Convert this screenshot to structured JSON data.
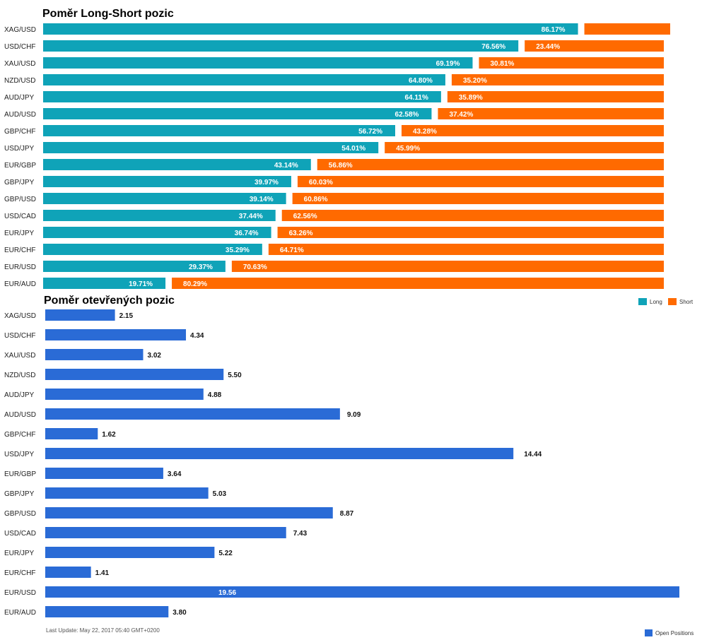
{
  "colors": {
    "long": "#0fa3b8",
    "short": "#ff6a00",
    "open": "#2a6bd6"
  },
  "chart_data": [
    {
      "type": "bar",
      "orientation": "horizontal",
      "stacked": true,
      "title": "Poměr Long-Short pozic",
      "categories": [
        "XAG/USD",
        "USD/CHF",
        "XAU/USD",
        "NZD/USD",
        "AUD/JPY",
        "AUD/USD",
        "GBP/CHF",
        "USD/JPY",
        "EUR/GBP",
        "GBP/JPY",
        "GBP/USD",
        "USD/CAD",
        "EUR/JPY",
        "EUR/CHF",
        "EUR/USD",
        "EUR/AUD"
      ],
      "series": [
        {
          "name": "Long",
          "values": [
            86.17,
            76.56,
            69.19,
            64.8,
            64.11,
            62.58,
            56.72,
            54.01,
            43.14,
            39.97,
            39.14,
            37.44,
            36.74,
            35.29,
            29.37,
            19.71
          ],
          "labels": [
            "86.17%",
            "76.56%",
            "69.19%",
            "64.80%",
            "64.11%",
            "62.58%",
            "56.72%",
            "54.01%",
            "43.14%",
            "39.97%",
            "39.14%",
            "37.44%",
            "36.74%",
            "35.29%",
            "29.37%",
            "19.71%"
          ]
        },
        {
          "name": "Short",
          "values": [
            13.83,
            23.44,
            30.81,
            35.2,
            35.89,
            37.42,
            43.28,
            45.99,
            56.86,
            60.03,
            60.86,
            62.56,
            63.26,
            64.71,
            70.63,
            80.29
          ],
          "labels": [
            "",
            "23.44%",
            "30.81%",
            "35.20%",
            "35.89%",
            "37.42%",
            "43.28%",
            "45.99%",
            "56.86%",
            "60.03%",
            "60.86%",
            "62.56%",
            "63.26%",
            "64.71%",
            "70.63%",
            "80.29%"
          ]
        }
      ],
      "xlim": [
        0,
        100
      ],
      "legend": "bottom-right"
    },
    {
      "type": "bar",
      "orientation": "horizontal",
      "title": "Poměr otevřených pozic",
      "categories": [
        "XAG/USD",
        "USD/CHF",
        "XAU/USD",
        "NZD/USD",
        "AUD/JPY",
        "AUD/USD",
        "GBP/CHF",
        "USD/JPY",
        "EUR/GBP",
        "GBP/JPY",
        "GBP/USD",
        "USD/CAD",
        "EUR/JPY",
        "EUR/CHF",
        "EUR/USD",
        "EUR/AUD"
      ],
      "series": [
        {
          "name": "Open Positions",
          "values": [
            2.15,
            4.34,
            3.02,
            5.5,
            4.88,
            9.09,
            1.62,
            14.44,
            3.64,
            5.03,
            8.87,
            7.43,
            5.22,
            1.41,
            19.56,
            3.8
          ],
          "labels": [
            "2.15",
            "4.34",
            "3.02",
            "5.50",
            "4.88",
            "9.09",
            "1.62",
            "14.44",
            "3.64",
            "5.03",
            "8.87",
            "7.43",
            "5.22",
            "1.41",
            "19.56",
            "3.80"
          ]
        }
      ],
      "xlim": [
        0,
        19.56
      ],
      "legend": "bottom-right"
    }
  ],
  "footer": {
    "last_update": "Last Update: May 22, 2017 05:40 GMT+0200"
  }
}
